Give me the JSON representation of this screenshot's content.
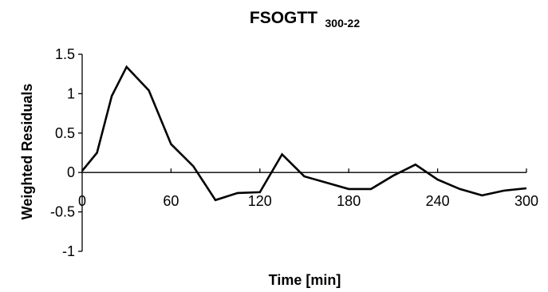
{
  "chart_data": {
    "type": "line",
    "title": "FSOGTT",
    "title_subscript": "300-22",
    "xlabel": "Time [min]",
    "ylabel": "Weighted Residuals",
    "xlim": [
      0,
      300
    ],
    "ylim": [
      -1,
      1.5
    ],
    "x_ticks": [
      0,
      60,
      120,
      180,
      240,
      300
    ],
    "y_ticks": [
      -1,
      -0.5,
      0,
      0.5,
      1,
      1.5
    ],
    "x_tick_labels": [
      "0",
      "60",
      "120",
      "180",
      "240",
      "300"
    ],
    "y_tick_labels": [
      "-1",
      "-0.5",
      "0",
      "0.5",
      "1",
      "1.5"
    ],
    "grid": false,
    "legend": "none",
    "series": [
      {
        "color": "#000000",
        "x": [
          0,
          10,
          20,
          30,
          45,
          60,
          75,
          90,
          105,
          120,
          135,
          150,
          165,
          180,
          195,
          210,
          225,
          240,
          255,
          270,
          285,
          300
        ],
        "y": [
          0.02,
          0.25,
          0.97,
          1.34,
          1.04,
          0.36,
          0.08,
          -0.35,
          -0.26,
          -0.25,
          0.23,
          -0.05,
          -0.13,
          -0.21,
          -0.21,
          -0.04,
          0.1,
          -0.09,
          -0.21,
          -0.29,
          -0.23,
          -0.2
        ]
      }
    ]
  }
}
